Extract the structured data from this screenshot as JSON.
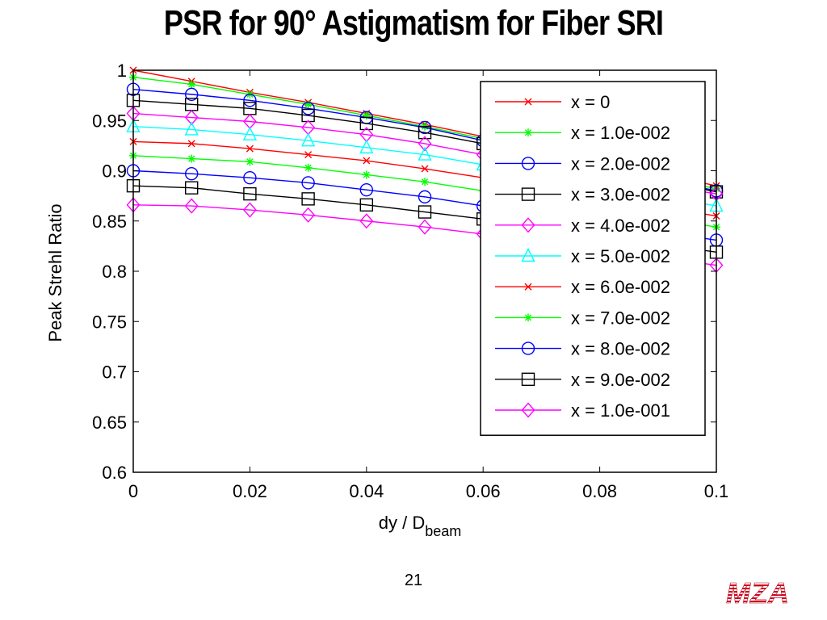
{
  "slide": {
    "title": "PSR for 90° Astigmatism for Fiber SRI",
    "page_number": "21",
    "logo_text": "MZA"
  },
  "chart_data": {
    "type": "line",
    "title": "",
    "xlabel": "dy / D",
    "xlabel_subscript": "beam",
    "ylabel": "Peak Strehl Ratio",
    "xlim": [
      0,
      0.1
    ],
    "ylim": [
      0.6,
      1.0
    ],
    "x_ticks": [
      0,
      0.02,
      0.04,
      0.06,
      0.08,
      0.1
    ],
    "x_tick_labels": [
      "0",
      "0.02",
      "0.04",
      "0.06",
      "0.08",
      "0.1"
    ],
    "y_ticks": [
      0.6,
      0.65,
      0.7,
      0.75,
      0.8,
      0.85,
      0.9,
      0.95,
      1.0
    ],
    "y_tick_labels": [
      "0.6",
      "0.65",
      "0.7",
      "0.75",
      "0.8",
      "0.85",
      "0.9",
      "0.95",
      "1"
    ],
    "grid": false,
    "legend_position": "top-right",
    "x": [
      0,
      0.01,
      0.02,
      0.03,
      0.04,
      0.05,
      0.06,
      0.1
    ],
    "series": [
      {
        "name": "x = 0",
        "color": "#ff0000",
        "marker": "x",
        "values": [
          1.0,
          0.989,
          0.978,
          0.968,
          0.957,
          0.946,
          0.934,
          0.885
        ]
      },
      {
        "name": "x = 1.0e-002",
        "color": "#00ff00",
        "marker": "star",
        "values": [
          0.993,
          0.986,
          0.976,
          0.966,
          0.955,
          0.944,
          0.932,
          0.882
        ]
      },
      {
        "name": "x = 2.0e-002",
        "color": "#0000ff",
        "marker": "circle",
        "values": [
          0.981,
          0.976,
          0.97,
          0.962,
          0.953,
          0.943,
          0.93,
          0.88
        ]
      },
      {
        "name": "x = 3.0e-002",
        "color": "#000000",
        "marker": "square",
        "values": [
          0.97,
          0.966,
          0.962,
          0.955,
          0.947,
          0.938,
          0.927,
          0.879
        ]
      },
      {
        "name": "x = 4.0e-002",
        "color": "#ff00ff",
        "marker": "diamond",
        "values": [
          0.957,
          0.953,
          0.949,
          0.943,
          0.936,
          0.927,
          0.916,
          0.877
        ]
      },
      {
        "name": "x = 5.0e-002",
        "color": "#00ffff",
        "marker": "triangle",
        "values": [
          0.944,
          0.941,
          0.936,
          0.93,
          0.923,
          0.916,
          0.906,
          0.865
        ]
      },
      {
        "name": "x = 6.0e-002",
        "color": "#ff0000",
        "marker": "x",
        "values": [
          0.929,
          0.927,
          0.922,
          0.916,
          0.91,
          0.902,
          0.893,
          0.855
        ]
      },
      {
        "name": "x = 7.0e-002",
        "color": "#00ff00",
        "marker": "star",
        "values": [
          0.915,
          0.912,
          0.909,
          0.903,
          0.896,
          0.889,
          0.88,
          0.844
        ]
      },
      {
        "name": "x = 8.0e-002",
        "color": "#0000ff",
        "marker": "circle",
        "values": [
          0.9,
          0.897,
          0.893,
          0.888,
          0.881,
          0.874,
          0.865,
          0.831
        ]
      },
      {
        "name": "x = 9.0e-002",
        "color": "#000000",
        "marker": "square",
        "values": [
          0.885,
          0.883,
          0.877,
          0.872,
          0.866,
          0.859,
          0.852,
          0.819
        ]
      },
      {
        "name": "x = 1.0e-001",
        "color": "#ff00ff",
        "marker": "diamond",
        "values": [
          0.866,
          0.865,
          0.861,
          0.856,
          0.85,
          0.844,
          0.837,
          0.806
        ]
      }
    ]
  }
}
